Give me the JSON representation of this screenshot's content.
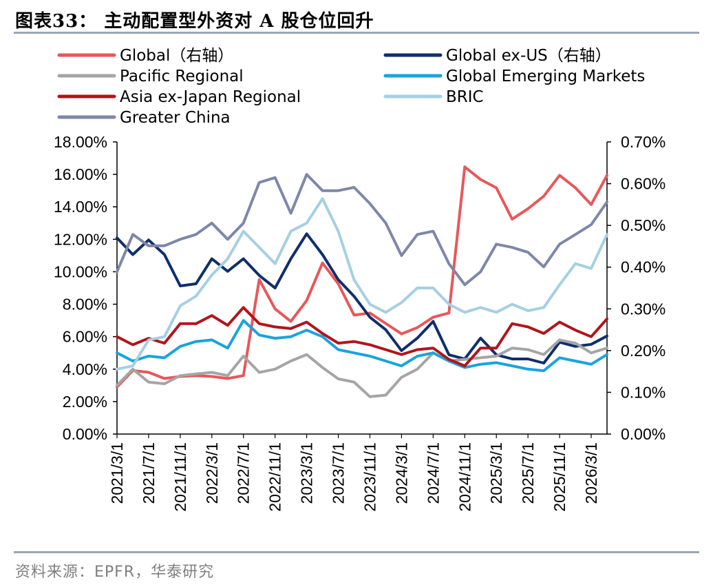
{
  "title": "图表33：  主动配置型外资对 A 股仓位回升",
  "source": "资料来源：EPFR，华泰研究",
  "chart_data": {
    "type": "line",
    "x": [
      "2021/3/1",
      "2021/5/1",
      "2021/7/1",
      "2021/9/1",
      "2021/11/1",
      "2022/1/1",
      "2022/3/1",
      "2022/5/1",
      "2022/7/1",
      "2022/9/1",
      "2022/11/1",
      "2023/1/1",
      "2023/3/1",
      "2023/5/1",
      "2023/7/1",
      "2023/9/1",
      "2023/11/1",
      "2024/1/1",
      "2024/3/1",
      "2024/5/1",
      "2024/7/1",
      "2024/9/1",
      "2024/11/1",
      "2025/1/1",
      "2025/3/1",
      "2025/5/1",
      "2025/7/1",
      "2025/9/1",
      "2025/11/1",
      "2026/1/1",
      "2026/3/1",
      "2026/4/1"
    ],
    "xtick_labels": [
      "2021/3/1",
      "2021/7/1",
      "2021/11/1",
      "2022/3/1",
      "2022/7/1",
      "2022/11/1",
      "2023/3/1",
      "2023/7/1",
      "2023/11/1",
      "2024/3/1",
      "2024/7/1",
      "2024/11/1",
      "2025/3/1",
      "2025/7/1",
      "2025/11/1",
      "2026/3/1"
    ],
    "yleft": {
      "lim": [
        0,
        18
      ],
      "ticks": [
        "0.00%",
        "2.00%",
        "4.00%",
        "6.00%",
        "8.00%",
        "10.00%",
        "12.00%",
        "14.00%",
        "16.00%",
        "18.00%"
      ]
    },
    "yright": {
      "lim": [
        0,
        0.7
      ],
      "ticks": [
        "0.00%",
        "0.10%",
        "0.20%",
        "0.30%",
        "0.40%",
        "0.50%",
        "0.60%",
        "0.70%"
      ]
    },
    "legend_placement": "top",
    "grid": false,
    "series": [
      {
        "name": "Global（右轴）",
        "axis": "right",
        "color": "#e8575a",
        "values": [
          0.113,
          0.152,
          0.148,
          0.133,
          0.138,
          0.14,
          0.138,
          0.133,
          0.14,
          0.37,
          0.3,
          0.27,
          0.32,
          0.41,
          0.36,
          0.285,
          0.29,
          0.265,
          0.24,
          0.255,
          0.28,
          0.29,
          0.64,
          0.61,
          0.59,
          0.515,
          0.54,
          0.57,
          0.62,
          0.59,
          0.55,
          0.62
        ]
      },
      {
        "name": "Global ex-US（右轴）",
        "axis": "right",
        "color": "#0f2e6b",
        "values": [
          0.47,
          0.43,
          0.465,
          0.43,
          0.355,
          0.36,
          0.42,
          0.39,
          0.42,
          0.38,
          0.35,
          0.42,
          0.48,
          0.43,
          0.37,
          0.33,
          0.28,
          0.25,
          0.2,
          0.23,
          0.27,
          0.19,
          0.18,
          0.23,
          0.19,
          0.18,
          0.18,
          0.17,
          0.22,
          0.21,
          0.215,
          0.235
        ]
      },
      {
        "name": "Pacific Regional",
        "axis": "left",
        "color": "#a5a5a5",
        "values": [
          3.0,
          4.0,
          3.2,
          3.1,
          3.6,
          3.7,
          3.8,
          3.6,
          4.8,
          3.8,
          4.0,
          4.5,
          4.9,
          4.1,
          3.4,
          3.2,
          2.3,
          2.4,
          3.5,
          4.0,
          5.0,
          4.5,
          4.6,
          4.7,
          4.8,
          5.3,
          5.2,
          4.9,
          5.8,
          5.6,
          5.0,
          5.3
        ]
      },
      {
        "name": "Global Emerging Markets",
        "axis": "left",
        "color": "#1aa3dc",
        "values": [
          5.0,
          4.5,
          4.8,
          4.7,
          5.4,
          5.7,
          5.8,
          5.3,
          7.0,
          6.1,
          5.9,
          6.0,
          6.4,
          6.0,
          5.2,
          5.0,
          4.8,
          4.5,
          4.2,
          4.8,
          5.0,
          4.5,
          4.1,
          4.3,
          4.4,
          4.2,
          4.0,
          3.9,
          4.7,
          4.5,
          4.3,
          4.9
        ]
      },
      {
        "name": "Asia ex-Japan Regional",
        "axis": "left",
        "color": "#b0151c",
        "values": [
          6.0,
          5.5,
          5.9,
          5.6,
          6.8,
          6.8,
          7.3,
          6.7,
          7.8,
          6.8,
          6.6,
          6.5,
          6.9,
          6.2,
          5.6,
          5.7,
          5.5,
          5.2,
          4.9,
          5.2,
          5.3,
          4.6,
          4.2,
          5.3,
          5.3,
          6.8,
          6.6,
          6.2,
          6.9,
          6.4,
          6.0,
          7.1
        ]
      },
      {
        "name": "BRIC",
        "axis": "left",
        "color": "#a6cfe2",
        "values": [
          4.0,
          4.2,
          5.8,
          6.0,
          7.9,
          8.5,
          9.8,
          10.8,
          12.5,
          11.5,
          10.5,
          12.5,
          13.0,
          14.5,
          12.5,
          9.5,
          8.0,
          7.5,
          8.1,
          9.0,
          9.0,
          8.0,
          7.5,
          7.8,
          7.5,
          8.0,
          7.6,
          7.8,
          9.2,
          10.5,
          10.2,
          12.3
        ]
      },
      {
        "name": "Greater China",
        "axis": "left",
        "color": "#7e87a8",
        "values": [
          10.0,
          12.3,
          11.6,
          11.6,
          12.0,
          12.3,
          13.0,
          12.0,
          13.0,
          15.5,
          15.8,
          13.6,
          16.0,
          15.0,
          15.0,
          15.2,
          14.2,
          13.0,
          11.0,
          12.3,
          12.5,
          10.5,
          9.2,
          10.0,
          11.7,
          11.5,
          11.2,
          10.3,
          11.7,
          12.3,
          12.9,
          14.3
        ]
      }
    ]
  }
}
